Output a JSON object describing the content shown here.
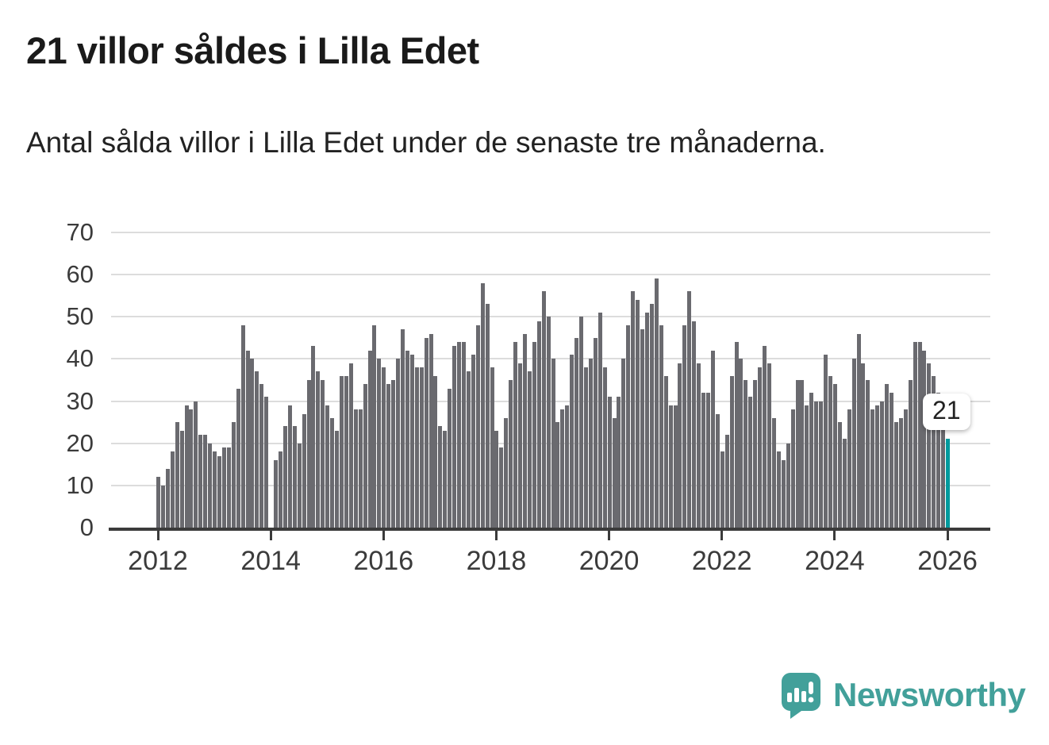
{
  "page": {
    "background": "#ffffff"
  },
  "header": {
    "title": "21 villor såldes i Lilla Edet",
    "subtitle": "Antal sålda villor i Lilla Edet under de senaste tre månaderna."
  },
  "chart_data": {
    "type": "bar",
    "title": "21 villor såldes i Lilla Edet",
    "subtitle": "Antal sålda villor i Lilla Edet under de senaste tre månaderna.",
    "unit": "antal sålda villor (rullande tre månader)",
    "frequency": "monthly",
    "x_start": "2012-01",
    "x_end": "2026-01",
    "ylim": [
      0,
      70
    ],
    "yticks": [
      0,
      10,
      20,
      30,
      40,
      50,
      60,
      70
    ],
    "xtick_labels": [
      "2012",
      "2014",
      "2016",
      "2018",
      "2020",
      "2022",
      "2024",
      "2026"
    ],
    "grid": "horizontal",
    "legend": "none",
    "bar_color": "#6a6a6f",
    "highlight_color": "#009a9d",
    "values_by_year": {
      "2012": [
        12,
        10,
        14,
        18,
        25,
        23,
        29,
        28,
        30,
        22,
        22,
        20
      ],
      "2013": [
        18,
        17,
        19,
        19,
        25,
        33,
        48,
        42,
        40,
        37,
        34,
        31
      ],
      "2014": [
        0,
        16,
        18,
        24,
        29,
        24,
        20,
        27,
        35,
        43,
        37,
        35
      ],
      "2015": [
        29,
        26,
        23,
        36,
        36,
        39,
        28,
        28,
        34,
        42,
        48,
        40
      ],
      "2016": [
        38,
        34,
        35,
        40,
        47,
        42,
        41,
        38,
        38,
        45,
        46,
        36
      ],
      "2017": [
        24,
        23,
        33,
        43,
        44,
        44,
        37,
        41,
        48,
        58,
        53,
        38
      ],
      "2018": [
        23,
        19,
        26,
        35,
        44,
        39,
        46,
        37,
        44,
        49,
        56,
        50
      ],
      "2019": [
        40,
        25,
        28,
        29,
        41,
        45,
        50,
        38,
        40,
        45,
        51,
        38
      ],
      "2020": [
        31,
        26,
        31,
        40,
        48,
        56,
        54,
        47,
        51,
        53,
        59,
        48
      ],
      "2021": [
        36,
        29,
        29,
        39,
        48,
        56,
        49,
        39,
        32,
        32,
        42,
        27
      ],
      "2022": [
        18,
        22,
        36,
        44,
        40,
        35,
        31,
        35,
        38,
        43,
        39,
        26
      ],
      "2023": [
        18,
        16,
        20,
        28,
        35,
        35,
        29,
        32,
        30,
        30,
        41,
        36
      ],
      "2024": [
        34,
        25,
        21,
        28,
        40,
        46,
        39,
        35,
        28,
        29,
        30,
        34
      ],
      "2025": [
        32,
        25,
        26,
        28,
        35,
        44,
        44,
        42,
        39,
        36,
        32,
        24
      ],
      "2026": [
        21
      ]
    },
    "highlight": {
      "month": "2026-01",
      "value": 21,
      "label": "21"
    }
  },
  "annotation": {
    "last_value_label": "21"
  },
  "axis": {
    "label_color": "#3b3b3b",
    "line_color": "#3b3b3b",
    "grid_color": "#dcdcdc"
  },
  "footer": {
    "brand": "Newsworthy",
    "brand_color": "#42a09a",
    "logo": "speech-bubble-bar-chart-icon"
  }
}
